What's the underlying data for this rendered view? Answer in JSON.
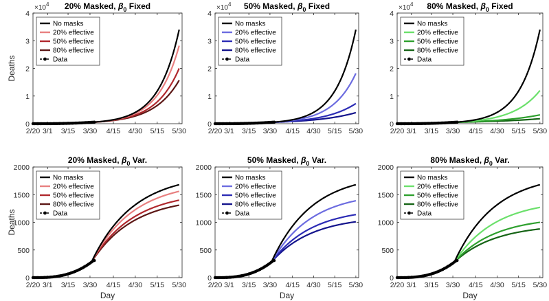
{
  "figure": {
    "background": "#ffffff"
  },
  "chart_data": [
    {
      "type": "line",
      "title_main": "20% Masked, ",
      "title_beta": "β",
      "title_sub": "0",
      "title_tail": " Fixed",
      "xlabel": "",
      "ylabel": "Deaths",
      "x_ticks": [
        "2/20",
        "3/1",
        "3/15",
        "3/30",
        "4/15",
        "4/30",
        "5/15",
        "5/30"
      ],
      "x_tick_days": [
        0,
        10,
        24,
        39,
        55,
        70,
        85,
        100
      ],
      "xlim": [
        0,
        102
      ],
      "ylim": [
        0,
        40000
      ],
      "y_ticks": [
        0,
        1,
        2,
        3,
        4
      ],
      "y_tick_scale": 10000,
      "exponent_base": "×10",
      "exponent_power": "4",
      "series": [
        {
          "name": "No masks",
          "color": "#000000",
          "final_value": 34000
        },
        {
          "name": "20% effective",
          "color": "#e88080",
          "final_value": 28200
        },
        {
          "name": "50% effective",
          "color": "#b0282d",
          "final_value": 20000
        },
        {
          "name": "80% effective",
          "color": "#5c1715",
          "final_value": 15700
        }
      ],
      "legend": {
        "data_label": "Data",
        "position": "top-left"
      }
    },
    {
      "type": "line",
      "title_main": "50% Masked, ",
      "title_beta": "β",
      "title_sub": "0",
      "title_tail": " Fixed",
      "xlabel": "",
      "ylabel": "",
      "x_ticks": [
        "2/20",
        "3/1",
        "3/15",
        "3/30",
        "4/15",
        "4/30",
        "5/15",
        "5/30"
      ],
      "x_tick_days": [
        0,
        10,
        24,
        39,
        55,
        70,
        85,
        100
      ],
      "xlim": [
        0,
        102
      ],
      "ylim": [
        0,
        40000
      ],
      "y_ticks": [
        0,
        1,
        2,
        3,
        4
      ],
      "y_tick_scale": 10000,
      "exponent_base": "×10",
      "exponent_power": "4",
      "series": [
        {
          "name": "No masks",
          "color": "#000000",
          "final_value": 34000
        },
        {
          "name": "20% effective",
          "color": "#6c6ce0",
          "final_value": 18200
        },
        {
          "name": "50% effective",
          "color": "#2c2cb5",
          "final_value": 7300
        },
        {
          "name": "80% effective",
          "color": "#14148c",
          "final_value": 4000
        }
      ],
      "legend": {
        "data_label": "Data",
        "position": "top-left"
      }
    },
    {
      "type": "line",
      "title_main": "80% Masked, ",
      "title_beta": "β",
      "title_sub": "0",
      "title_tail": " Fixed",
      "xlabel": "",
      "ylabel": "",
      "x_ticks": [
        "2/20",
        "3/1",
        "3/15",
        "3/30",
        "4/15",
        "4/30",
        "5/15",
        "5/30"
      ],
      "x_tick_days": [
        0,
        10,
        24,
        39,
        55,
        70,
        85,
        100
      ],
      "xlim": [
        0,
        102
      ],
      "ylim": [
        0,
        40000
      ],
      "y_ticks": [
        0,
        1,
        2,
        3,
        4
      ],
      "y_tick_scale": 10000,
      "exponent_base": "×10",
      "exponent_power": "4",
      "series": [
        {
          "name": "No masks",
          "color": "#000000",
          "final_value": 34000
        },
        {
          "name": "20% effective",
          "color": "#6be06b",
          "final_value": 12000
        },
        {
          "name": "50% effective",
          "color": "#2ea02e",
          "final_value": 3200
        },
        {
          "name": "80% effective",
          "color": "#166416",
          "final_value": 1800
        }
      ],
      "legend": {
        "data_label": "Data",
        "position": "top-left"
      }
    },
    {
      "type": "line",
      "title_main": "20% Masked, ",
      "title_beta": "β",
      "title_sub": "0",
      "title_tail": " Var.",
      "xlabel": "Day",
      "ylabel": "Deaths",
      "x_ticks": [
        "2/20",
        "3/1",
        "3/15",
        "3/30",
        "4/15",
        "4/30",
        "5/15",
        "5/30"
      ],
      "x_tick_days": [
        0,
        10,
        24,
        39,
        55,
        70,
        85,
        100
      ],
      "xlim": [
        0,
        102
      ],
      "ylim": [
        0,
        2000
      ],
      "y_ticks": [
        0,
        500,
        1000,
        1500,
        2000
      ],
      "y_tick_scale": 1,
      "exponent_base": "",
      "exponent_power": "",
      "series": [
        {
          "name": "No masks",
          "color": "#000000",
          "final_value": 1680
        },
        {
          "name": "20% effective",
          "color": "#e88080",
          "final_value": 1560
        },
        {
          "name": "50% effective",
          "color": "#b0282d",
          "final_value": 1400
        },
        {
          "name": "80% effective",
          "color": "#5c1715",
          "final_value": 1310
        }
      ],
      "legend": {
        "data_label": "Data",
        "position": "top-left"
      }
    },
    {
      "type": "line",
      "title_main": "50% Masked, ",
      "title_beta": "β",
      "title_sub": "0",
      "title_tail": " Var.",
      "xlabel": "Day",
      "ylabel": "",
      "x_ticks": [
        "2/20",
        "3/1",
        "3/15",
        "3/30",
        "4/15",
        "4/30",
        "5/15",
        "5/30"
      ],
      "x_tick_days": [
        0,
        10,
        24,
        39,
        55,
        70,
        85,
        100
      ],
      "xlim": [
        0,
        102
      ],
      "ylim": [
        0,
        2000
      ],
      "y_ticks": [
        0,
        500,
        1000,
        1500,
        2000
      ],
      "y_tick_scale": 1,
      "exponent_base": "",
      "exponent_power": "",
      "series": [
        {
          "name": "No masks",
          "color": "#000000",
          "final_value": 1680
        },
        {
          "name": "20% effective",
          "color": "#6c6ce0",
          "final_value": 1390
        },
        {
          "name": "50% effective",
          "color": "#2c2cb5",
          "final_value": 1140
        },
        {
          "name": "80% effective",
          "color": "#14148c",
          "final_value": 1010
        }
      ],
      "legend": {
        "data_label": "Data",
        "position": "top-left"
      }
    },
    {
      "type": "line",
      "title_main": "80% Masked, ",
      "title_beta": "β",
      "title_sub": "0",
      "title_tail": " Var.",
      "xlabel": "Day",
      "ylabel": "",
      "x_ticks": [
        "2/20",
        "3/1",
        "3/15",
        "3/30",
        "4/15",
        "4/30",
        "5/15",
        "5/30"
      ],
      "x_tick_days": [
        0,
        10,
        24,
        39,
        55,
        70,
        85,
        100
      ],
      "xlim": [
        0,
        102
      ],
      "ylim": [
        0,
        2000
      ],
      "y_ticks": [
        0,
        500,
        1000,
        1500,
        2000
      ],
      "y_tick_scale": 1,
      "exponent_base": "",
      "exponent_power": "",
      "series": [
        {
          "name": "No masks",
          "color": "#000000",
          "final_value": 1680
        },
        {
          "name": "20% effective",
          "color": "#6be06b",
          "final_value": 1270
        },
        {
          "name": "50% effective",
          "color": "#2ea02e",
          "final_value": 1000
        },
        {
          "name": "80% effective",
          "color": "#166416",
          "final_value": 880
        }
      ],
      "legend": {
        "data_label": "Data",
        "position": "top-left"
      }
    }
  ]
}
